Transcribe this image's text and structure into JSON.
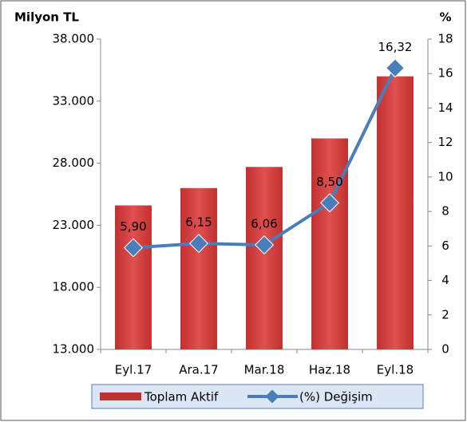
{
  "chart_data": {
    "type": "bar-line",
    "title": "Milyon TL",
    "y2_title": "%",
    "categories": [
      "Eyl.17",
      "Ara.17",
      "Mar.18",
      "Haz.18",
      "Eyl.18"
    ],
    "series": [
      {
        "name": "Toplam Aktif",
        "type": "bar",
        "color": "#c0302e",
        "values": [
          24600,
          26000,
          27700,
          30000,
          35000
        ]
      },
      {
        "name": "(%) Değişim",
        "type": "line",
        "axis": "y2",
        "color": "#4a7ebb",
        "values": [
          5.9,
          6.15,
          6.06,
          8.5,
          16.32
        ],
        "value_labels": [
          "5,90",
          "6,15",
          "6,06",
          "8,50",
          "16,32"
        ]
      }
    ],
    "ylim": [
      13000,
      38000
    ],
    "yticks": [
      {
        "value": 13000,
        "label": "13.000"
      },
      {
        "value": 18000,
        "label": "18.000"
      },
      {
        "value": 23000,
        "label": "23.000"
      },
      {
        "value": 28000,
        "label": "28.000"
      },
      {
        "value": 33000,
        "label": "33.000"
      },
      {
        "value": 38000,
        "label": "38.000"
      }
    ],
    "y2lim": [
      0,
      18
    ],
    "y2ticks": [
      0,
      2,
      4,
      6,
      8,
      10,
      12,
      14,
      16,
      18
    ],
    "legend": "bottom"
  }
}
